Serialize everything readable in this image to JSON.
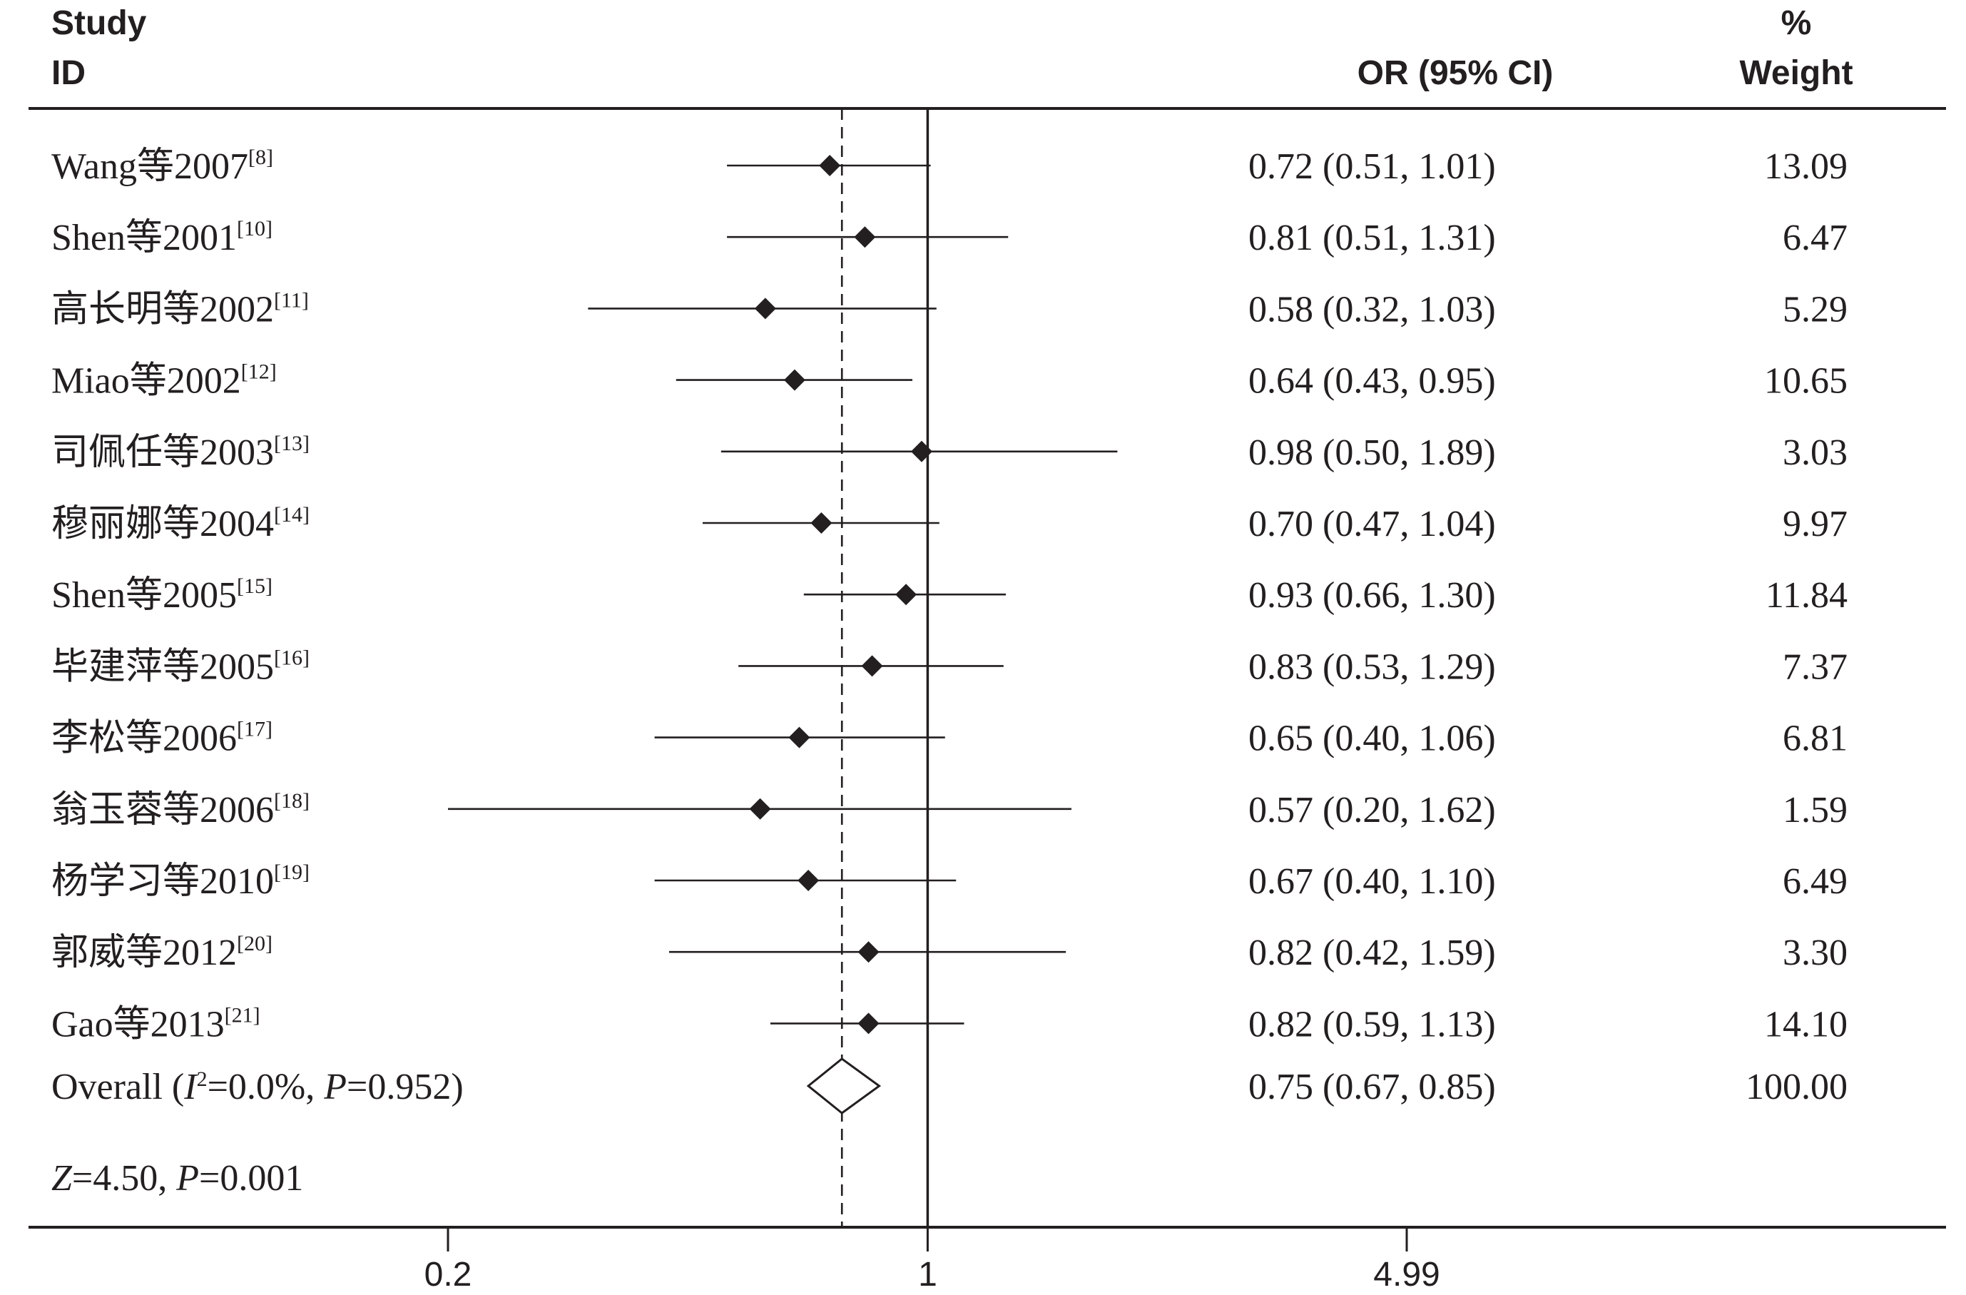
{
  "chart_data": {
    "type": "forest",
    "header": {
      "study_line1": "Study",
      "study_line2": "ID",
      "or_label": "OR (95% CI)",
      "weight_line1": "%",
      "weight_line2": "Weight"
    },
    "x_scale": "log",
    "xlim": [
      0.2,
      4.99
    ],
    "x_ticks": [
      {
        "value": 0.2,
        "label": "0.2"
      },
      {
        "value": 1,
        "label": "1"
      },
      {
        "value": 4.99,
        "label": "4.99"
      }
    ],
    "null_line": 1,
    "pooled_line": 0.75,
    "studies": [
      {
        "label": "Wang等2007",
        "ref": "[8]",
        "or": 0.72,
        "lo": 0.51,
        "hi": 1.01,
        "or_text": "0.72 (0.51, 1.01)",
        "weight": "13.09"
      },
      {
        "label": "Shen等2001",
        "ref": "[10]",
        "or": 0.81,
        "lo": 0.51,
        "hi": 1.31,
        "or_text": "0.81 (0.51, 1.31)",
        "weight": "6.47"
      },
      {
        "label": "高长明等2002",
        "ref": "[11]",
        "or": 0.58,
        "lo": 0.32,
        "hi": 1.03,
        "or_text": "0.58 (0.32, 1.03)",
        "weight": "5.29"
      },
      {
        "label": "Miao等2002",
        "ref": "[12]",
        "or": 0.64,
        "lo": 0.43,
        "hi": 0.95,
        "or_text": "0.64 (0.43, 0.95)",
        "weight": "10.65"
      },
      {
        "label": "司佩任等2003",
        "ref": "[13]",
        "or": 0.98,
        "lo": 0.5,
        "hi": 1.89,
        "or_text": "0.98 (0.50, 1.89)",
        "weight": "3.03"
      },
      {
        "label": "穆丽娜等2004",
        "ref": "[14]",
        "or": 0.7,
        "lo": 0.47,
        "hi": 1.04,
        "or_text": "0.70 (0.47, 1.04)",
        "weight": "9.97"
      },
      {
        "label": "Shen等2005",
        "ref": "[15]",
        "or": 0.93,
        "lo": 0.66,
        "hi": 1.3,
        "or_text": "0.93 (0.66, 1.30)",
        "weight": "11.84"
      },
      {
        "label": "毕建萍等2005",
        "ref": "[16]",
        "or": 0.83,
        "lo": 0.53,
        "hi": 1.29,
        "or_text": "0.83 (0.53, 1.29)",
        "weight": "7.37"
      },
      {
        "label": "李松等2006",
        "ref": "[17]",
        "or": 0.65,
        "lo": 0.4,
        "hi": 1.06,
        "or_text": "0.65 (0.40, 1.06)",
        "weight": "6.81"
      },
      {
        "label": "翁玉蓉等2006",
        "ref": "[18]",
        "or": 0.57,
        "lo": 0.2,
        "hi": 1.62,
        "or_text": "0.57 (0.20, 1.62)",
        "weight": "1.59"
      },
      {
        "label": "杨学习等2010",
        "ref": "[19]",
        "or": 0.67,
        "lo": 0.4,
        "hi": 1.1,
        "or_text": "0.67 (0.40, 1.10)",
        "weight": "6.49"
      },
      {
        "label": "郭威等2012",
        "ref": "[20]",
        "or": 0.82,
        "lo": 0.42,
        "hi": 1.59,
        "or_text": "0.82 (0.42, 1.59)",
        "weight": "3.30"
      },
      {
        "label": "Gao等2013",
        "ref": "[21]",
        "or": 0.82,
        "lo": 0.59,
        "hi": 1.13,
        "or_text": "0.82 (0.59, 1.13)",
        "weight": "14.10"
      }
    ],
    "overall": {
      "label_prefix": "Overall  (",
      "i_symbol": "I",
      "i_sup": "2",
      "i_value": "=0.0%, ",
      "p_symbol": "P",
      "p_value": "=0.952)",
      "or": 0.75,
      "lo": 0.67,
      "hi": 0.85,
      "or_text": "0.75 (0.67, 0.85)",
      "weight": "100.00"
    },
    "z_test": {
      "z_symbol": "Z",
      "z_value": "=4.50, ",
      "p_symbol": "P",
      "p_value": "=0.001"
    },
    "colors": {
      "ink": "#231f20",
      "background": "#ffffff"
    }
  }
}
